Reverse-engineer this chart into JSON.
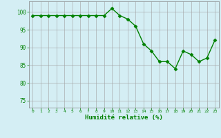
{
  "x": [
    0,
    1,
    2,
    3,
    4,
    5,
    6,
    7,
    8,
    9,
    10,
    11,
    12,
    13,
    14,
    15,
    16,
    17,
    18,
    19,
    20,
    21,
    22,
    23
  ],
  "y": [
    99,
    99,
    99,
    99,
    99,
    99,
    99,
    99,
    99,
    99,
    101,
    99,
    98,
    96,
    91,
    89,
    86,
    86,
    84,
    89,
    88,
    86,
    87,
    92
  ],
  "line_color": "#008000",
  "marker": "D",
  "marker_size": 2.5,
  "bg_color": "#d4eef4",
  "grid_color": "#a0a0a0",
  "xlabel": "Humidité relative (%)",
  "xlabel_color": "#008000",
  "tick_color": "#008000",
  "ylim": [
    73,
    103
  ],
  "yticks": [
    75,
    80,
    85,
    90,
    95,
    100
  ],
  "xlim": [
    -0.5,
    23.5
  ],
  "title": ""
}
